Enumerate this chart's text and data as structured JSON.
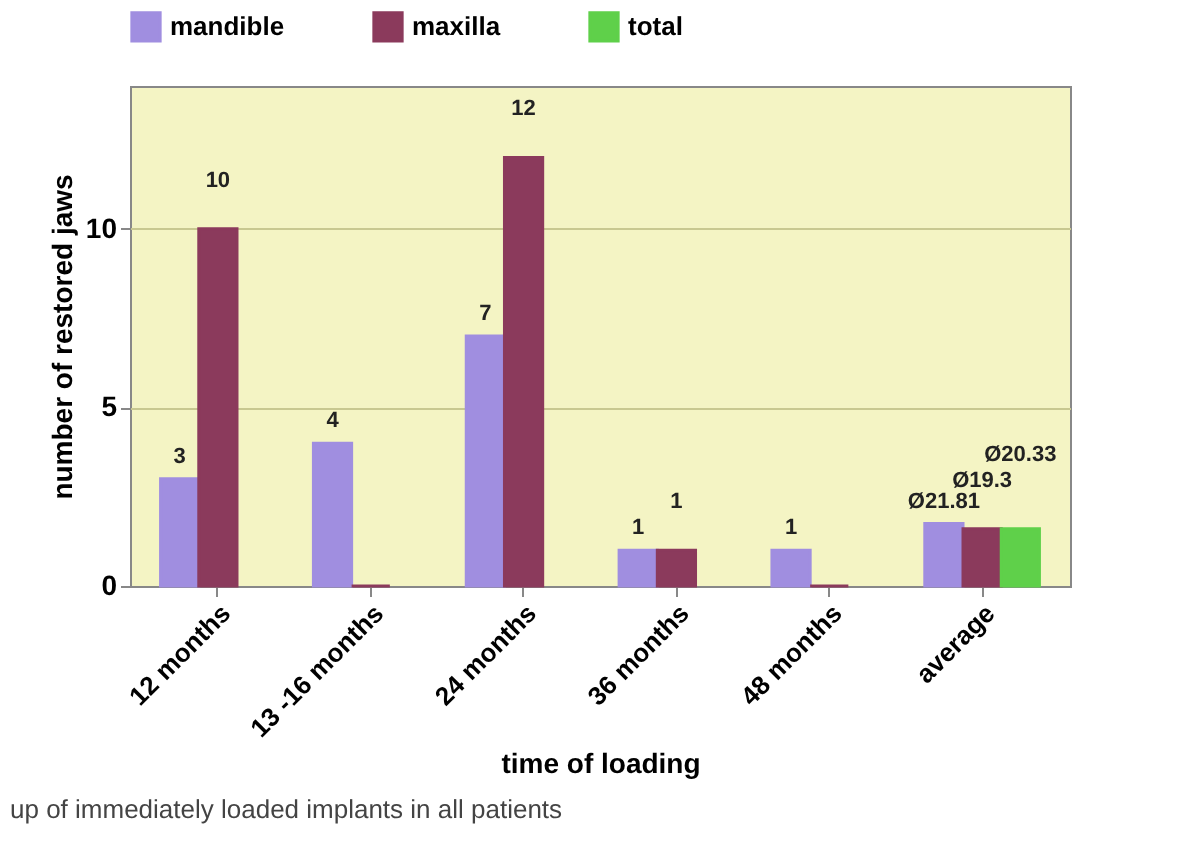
{
  "chart_data": {
    "type": "bar",
    "categories": [
      "12 months",
      "13 -16 months",
      "24 months",
      "36 months",
      "48 months",
      "average"
    ],
    "series": [
      {
        "name": "mandible",
        "color": "#a08ee0",
        "values": [
          3,
          4,
          7,
          1,
          1,
          1.75
        ],
        "value_labels": [
          "3",
          "4",
          "7",
          "1",
          "1",
          "Ø21.81"
        ]
      },
      {
        "name": "maxilla",
        "color": "#8b3a5c",
        "values": [
          10,
          0,
          12,
          1,
          0,
          1.6
        ],
        "value_labels": [
          "10",
          null,
          "12",
          "1",
          null,
          "Ø19.3"
        ]
      },
      {
        "name": "total",
        "color": "#5fd04a",
        "values": [
          null,
          null,
          null,
          null,
          null,
          1.6
        ],
        "value_labels": [
          null,
          null,
          null,
          null,
          null,
          "Ø20.33"
        ]
      }
    ],
    "xlabel": "time of loading",
    "ylabel": "number of restored  jaws",
    "ylim": [
      0,
      14
    ],
    "yticks": [
      0,
      5,
      10
    ],
    "grid": "y",
    "legend": "top",
    "annotations": [
      "up of immediately loaded implants in all patients"
    ]
  }
}
